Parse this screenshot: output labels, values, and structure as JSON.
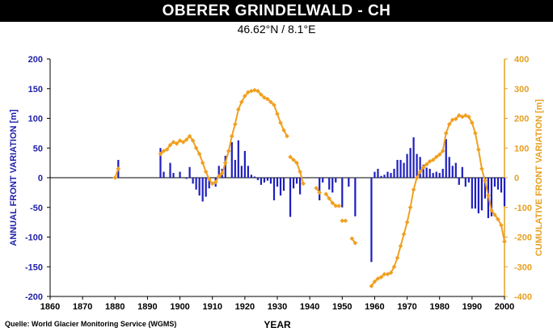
{
  "header": {
    "title": "OBERER GRINDELWALD - CH",
    "subtitle": "46.62°N / 8.1°E"
  },
  "footer": {
    "source": "Quelle: World Glacier Monitoring Service (WGMS)"
  },
  "colors": {
    "bars": "#1f1fbf",
    "cumulative": "#f0a020",
    "axis_left": "#1f1fa8",
    "axis_right": "#e6a020"
  },
  "chart_data": {
    "type": "bar+line",
    "title": "OBERER GRINDELWALD - CH",
    "subtitle": "46.62°N / 8.1°E",
    "xlabel": "YEAR",
    "ylabel_left": "ANNUAL FRONT VARIATION [m]",
    "ylabel_right": "CUMULATIVE FRONT VARIATION [m]",
    "xlim": [
      1860,
      2000
    ],
    "ylim_left": [
      -200,
      200
    ],
    "ylim_right": [
      -400,
      400
    ],
    "x_ticks": [
      1860,
      1870,
      1880,
      1890,
      1900,
      1910,
      1920,
      1930,
      1940,
      1950,
      1960,
      1970,
      1980,
      1990,
      2000
    ],
    "y_left_ticks": [
      200,
      150,
      100,
      50,
      0,
      -50,
      -100,
      -150,
      -200
    ],
    "y_right_ticks": [
      400,
      300,
      200,
      100,
      0,
      -100,
      -200,
      -300,
      -400
    ],
    "series_annual": {
      "name": "Annual front variation",
      "points": [
        [
          1881,
          30
        ],
        [
          1894,
          50
        ],
        [
          1895,
          10
        ],
        [
          1897,
          25
        ],
        [
          1898,
          8
        ],
        [
          1900,
          10
        ],
        [
          1902,
          -2
        ],
        [
          1903,
          18
        ],
        [
          1904,
          -10
        ],
        [
          1905,
          -20
        ],
        [
          1906,
          -30
        ],
        [
          1907,
          -40
        ],
        [
          1908,
          -32
        ],
        [
          1909,
          -18
        ],
        [
          1911,
          -15
        ],
        [
          1912,
          20
        ],
        [
          1913,
          15
        ],
        [
          1914,
          37
        ],
        [
          1916,
          60
        ],
        [
          1917,
          30
        ],
        [
          1918,
          63
        ],
        [
          1919,
          20
        ],
        [
          1920,
          45
        ],
        [
          1921,
          20
        ],
        [
          1922,
          5
        ],
        [
          1923,
          2
        ],
        [
          1924,
          -4
        ],
        [
          1925,
          -12
        ],
        [
          1926,
          -8
        ],
        [
          1927,
          -5
        ],
        [
          1928,
          -10
        ],
        [
          1929,
          -38
        ],
        [
          1930,
          -15
        ],
        [
          1931,
          -30
        ],
        [
          1932,
          -22
        ],
        [
          1934,
          -66
        ],
        [
          1935,
          -18
        ],
        [
          1936,
          -10
        ],
        [
          1937,
          -28
        ],
        [
          1943,
          -38
        ],
        [
          1944,
          -8
        ],
        [
          1946,
          -20
        ],
        [
          1947,
          -25
        ],
        [
          1948,
          -8
        ],
        [
          1950,
          -50
        ],
        [
          1952,
          -15
        ],
        [
          1954,
          -65
        ],
        [
          1959,
          -142
        ],
        [
          1960,
          10
        ],
        [
          1961,
          15
        ],
        [
          1962,
          3
        ],
        [
          1963,
          5
        ],
        [
          1964,
          10
        ],
        [
          1965,
          8
        ],
        [
          1966,
          15
        ],
        [
          1967,
          30
        ],
        [
          1968,
          30
        ],
        [
          1969,
          25
        ],
        [
          1970,
          40
        ],
        [
          1971,
          50
        ],
        [
          1972,
          68
        ],
        [
          1973,
          40
        ],
        [
          1974,
          35
        ],
        [
          1975,
          22
        ],
        [
          1976,
          17
        ],
        [
          1977,
          15
        ],
        [
          1978,
          8
        ],
        [
          1979,
          10
        ],
        [
          1980,
          8
        ],
        [
          1981,
          15
        ],
        [
          1982,
          65
        ],
        [
          1983,
          35
        ],
        [
          1984,
          20
        ],
        [
          1985,
          25
        ],
        [
          1986,
          -12
        ],
        [
          1987,
          18
        ],
        [
          1988,
          -15
        ],
        [
          1989,
          -8
        ],
        [
          1990,
          -52
        ],
        [
          1991,
          -52
        ],
        [
          1992,
          -60
        ],
        [
          1993,
          -55
        ],
        [
          1994,
          -35
        ],
        [
          1995,
          -68
        ],
        [
          1996,
          -65
        ],
        [
          1997,
          -15
        ],
        [
          1998,
          -20
        ],
        [
          1999,
          -25
        ],
        [
          2000,
          -48
        ]
      ]
    },
    "series_cumulative": {
      "name": "Cumulative front variation",
      "segments": [
        [
          [
            1880,
            0
          ],
          [
            1881,
            30
          ]
        ],
        [
          [
            1894,
            80
          ],
          [
            1895,
            90
          ],
          [
            1896,
            95
          ],
          [
            1897,
            110
          ],
          [
            1898,
            120
          ],
          [
            1899,
            115
          ],
          [
            1900,
            125
          ],
          [
            1901,
            120
          ],
          [
            1902,
            128
          ],
          [
            1903,
            140
          ],
          [
            1904,
            125
          ],
          [
            1905,
            100
          ],
          [
            1906,
            80
          ],
          [
            1907,
            50
          ],
          [
            1908,
            20
          ],
          [
            1909,
            -5
          ],
          [
            1910,
            -20
          ],
          [
            1911,
            -15
          ],
          [
            1912,
            5
          ],
          [
            1913,
            15
          ],
          [
            1914,
            50
          ],
          [
            1915,
            90
          ],
          [
            1916,
            140
          ],
          [
            1917,
            180
          ],
          [
            1918,
            230
          ],
          [
            1919,
            255
          ],
          [
            1920,
            275
          ],
          [
            1921,
            288
          ],
          [
            1922,
            292
          ],
          [
            1923,
            295
          ],
          [
            1924,
            292
          ],
          [
            1925,
            280
          ],
          [
            1926,
            270
          ],
          [
            1927,
            265
          ],
          [
            1928,
            255
          ],
          [
            1929,
            245
          ],
          [
            1930,
            215
          ],
          [
            1931,
            185
          ],
          [
            1932,
            160
          ],
          [
            1933,
            140
          ]
        ],
        [
          [
            1934,
            70
          ],
          [
            1935,
            60
          ],
          [
            1936,
            50
          ],
          [
            1937,
            20
          ],
          [
            1938,
            -20
          ]
        ],
        [
          [
            1942,
            -35
          ],
          [
            1943,
            -50
          ]
        ],
        [
          [
            1945,
            -55
          ],
          [
            1946,
            -70
          ],
          [
            1947,
            -85
          ],
          [
            1948,
            -95
          ],
          [
            1949,
            -95
          ]
        ],
        [
          [
            1950,
            -145
          ],
          [
            1951,
            -145
          ]
        ],
        [
          [
            1953,
            -205
          ],
          [
            1954,
            -220
          ]
        ],
        [
          [
            1959,
            -365
          ],
          [
            1960,
            -350
          ],
          [
            1961,
            -340
          ],
          [
            1962,
            -335
          ],
          [
            1963,
            -325
          ],
          [
            1964,
            -325
          ],
          [
            1965,
            -320
          ],
          [
            1966,
            -300
          ],
          [
            1967,
            -270
          ],
          [
            1968,
            -230
          ],
          [
            1969,
            -190
          ],
          [
            1970,
            -150
          ],
          [
            1971,
            -100
          ],
          [
            1972,
            -40
          ],
          [
            1973,
            0
          ],
          [
            1974,
            20
          ],
          [
            1975,
            35
          ],
          [
            1976,
            45
          ],
          [
            1977,
            55
          ],
          [
            1978,
            60
          ],
          [
            1979,
            70
          ],
          [
            1980,
            78
          ],
          [
            1981,
            90
          ],
          [
            1982,
            150
          ],
          [
            1983,
            180
          ],
          [
            1984,
            195
          ],
          [
            1985,
            198
          ],
          [
            1986,
            210
          ],
          [
            1987,
            205
          ],
          [
            1988,
            210
          ],
          [
            1989,
            205
          ],
          [
            1990,
            185
          ],
          [
            1991,
            150
          ],
          [
            1992,
            95
          ],
          [
            1993,
            30
          ],
          [
            1994,
            -10
          ],
          [
            1995,
            -60
          ],
          [
            1996,
            -110
          ],
          [
            1997,
            -125
          ],
          [
            1998,
            -140
          ],
          [
            1999,
            -160
          ],
          [
            2000,
            -215
          ]
        ]
      ]
    }
  }
}
